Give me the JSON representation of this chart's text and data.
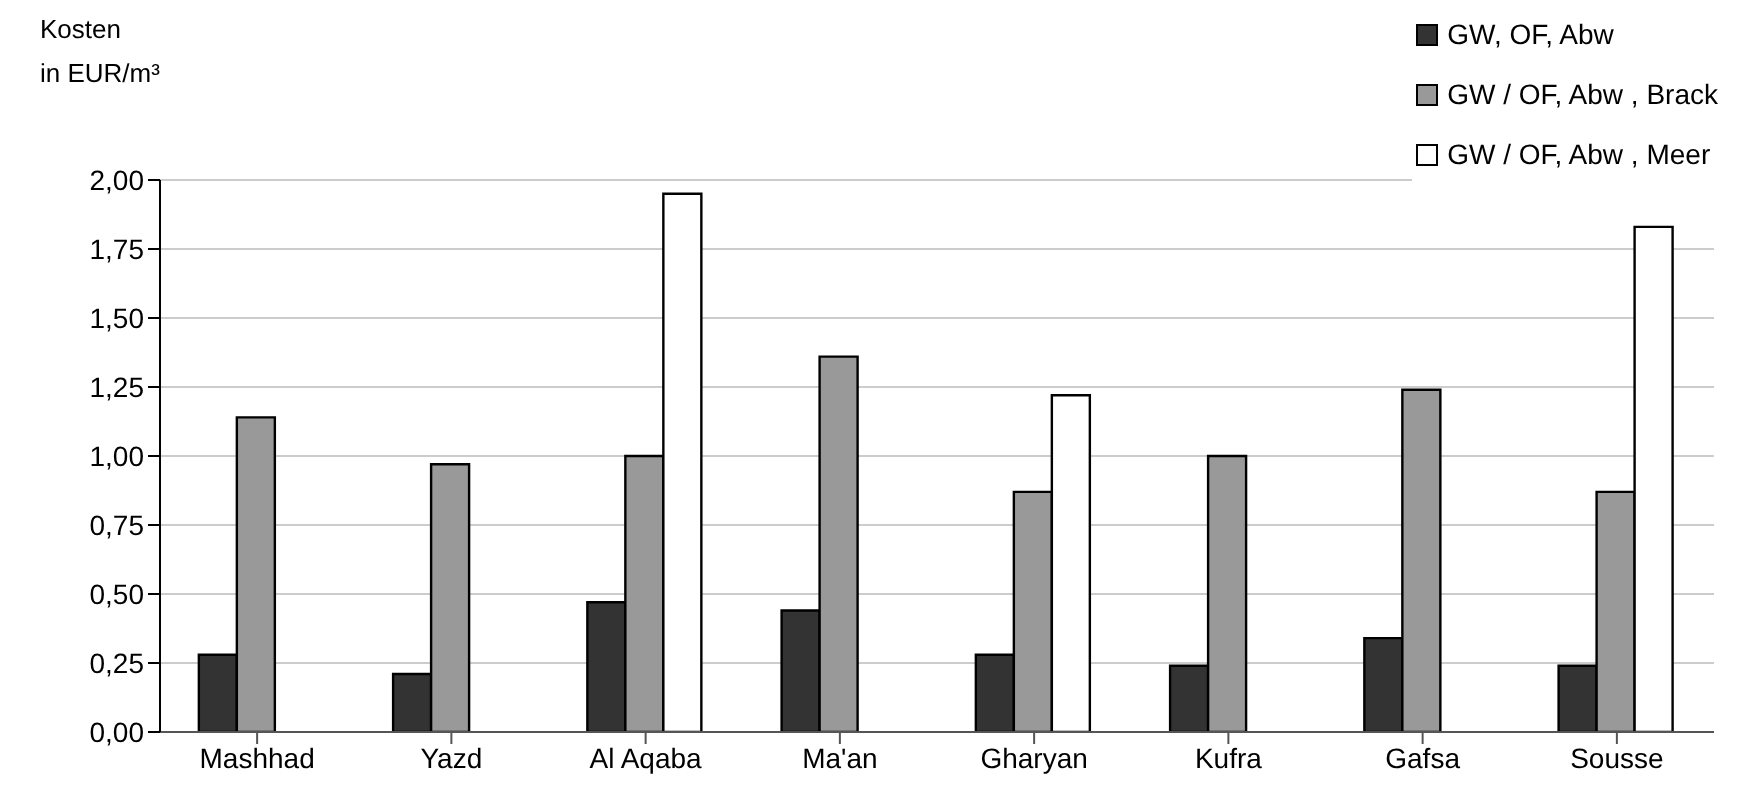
{
  "chart_data": {
    "type": "bar",
    "ylabel": "Kosten\nin EUR/m³",
    "categories": [
      "Mashhad",
      "Yazd",
      "Al Aqaba",
      "Ma'an",
      "Gharyan",
      "Kufra",
      "Gafsa",
      "Sousse"
    ],
    "series": [
      {
        "name": "GW, OF, Abw",
        "color": "#333333",
        "values": [
          0.28,
          0.21,
          0.47,
          0.44,
          0.28,
          0.24,
          0.34,
          0.24
        ]
      },
      {
        "name": "GW / OF, Abw , Brack",
        "color": "#999999",
        "values": [
          1.14,
          0.97,
          1.0,
          1.36,
          0.87,
          1.0,
          1.24,
          0.87
        ]
      },
      {
        "name": "GW / OF, Abw , Meer",
        "color": "#ffffff",
        "values": [
          null,
          null,
          1.95,
          null,
          1.22,
          null,
          null,
          1.83
        ]
      }
    ],
    "ylim": [
      0,
      2
    ],
    "yticks": [
      {
        "value": 0,
        "label": "0,00"
      },
      {
        "value": 0.25,
        "label": "0,25"
      },
      {
        "value": 0.5,
        "label": "0,50"
      },
      {
        "value": 0.75,
        "label": "0,75"
      },
      {
        "value": 1,
        "label": "1,00"
      },
      {
        "value": 1.25,
        "label": "1,25"
      },
      {
        "value": 1.5,
        "label": "1,50"
      },
      {
        "value": 1.75,
        "label": "1,75"
      },
      {
        "value": 2,
        "label": "2,00"
      }
    ],
    "grid": "y",
    "legend": "top right"
  }
}
